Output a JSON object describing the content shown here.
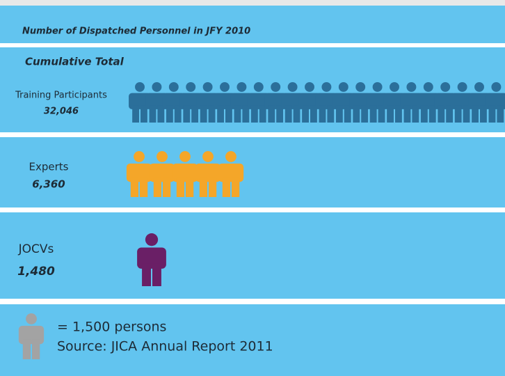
{
  "chart_data": {
    "type": "pictogram",
    "title": "Number of Dispatched Personnel in JFY 2010",
    "subtitle": "Cumulative Total",
    "categories": [
      "Training Participants",
      "Experts",
      "JOCVs"
    ],
    "values": [
      32046,
      6360,
      1480
    ],
    "value_labels": [
      "32,046",
      "6,360",
      "1,480"
    ],
    "colors": [
      "#2b6f9a",
      "#f4a629",
      "#6a1f66"
    ],
    "unit": {
      "value": 1500,
      "label": "= 1,500 persons"
    },
    "unit_color": "#a3a3a3",
    "source": "Source: JICA Annual  Report 2011"
  }
}
